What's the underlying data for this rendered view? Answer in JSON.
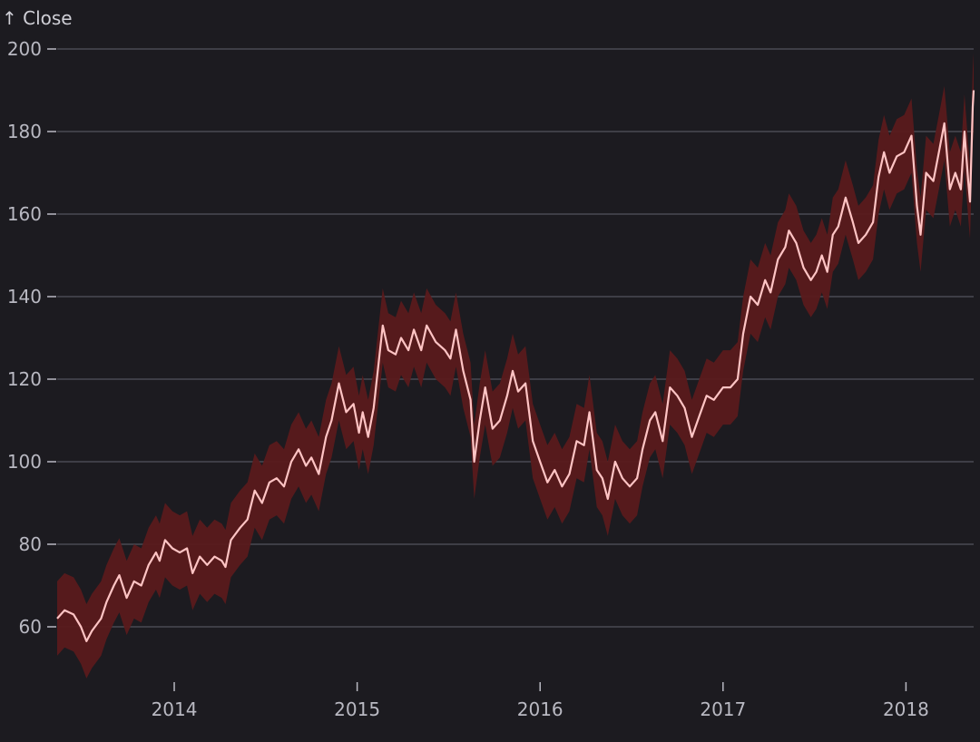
{
  "chart_data": {
    "type": "line",
    "ylabel": "↑ Close",
    "xlabel": "",
    "ylim": [
      47,
      200
    ],
    "yticks": [
      60,
      80,
      100,
      120,
      140,
      160,
      180,
      200
    ],
    "xlim": [
      2013.36,
      2018.37
    ],
    "xticks": [
      {
        "value": 2014,
        "label": "2014"
      },
      {
        "value": 2015,
        "label": "2015"
      },
      {
        "value": 2016,
        "label": "2016"
      },
      {
        "value": 2017,
        "label": "2017"
      },
      {
        "value": 2018,
        "label": "2018"
      }
    ],
    "grid": true,
    "band_half_width": 9,
    "colors": {
      "line": "#ffc4c4",
      "band": "#5a1a1c",
      "background": "#1c1b20",
      "grid": "#4a4a52"
    },
    "series": [
      {
        "points": [
          [
            2013.36,
            62
          ],
          [
            2013.4,
            64
          ],
          [
            2013.45,
            63
          ],
          [
            2013.49,
            60
          ],
          [
            2013.52,
            56.5
          ],
          [
            2013.55,
            59
          ],
          [
            2013.6,
            62
          ],
          [
            2013.63,
            66
          ],
          [
            2013.67,
            70
          ],
          [
            2013.7,
            72.5
          ],
          [
            2013.74,
            67
          ],
          [
            2013.78,
            71
          ],
          [
            2013.82,
            70
          ],
          [
            2013.86,
            75
          ],
          [
            2013.9,
            78
          ],
          [
            2013.92,
            76
          ],
          [
            2013.95,
            81
          ],
          [
            2013.99,
            79
          ],
          [
            2014.03,
            78
          ],
          [
            2014.07,
            79
          ],
          [
            2014.1,
            73
          ],
          [
            2014.14,
            77
          ],
          [
            2014.18,
            75
          ],
          [
            2014.22,
            77
          ],
          [
            2014.26,
            76
          ],
          [
            2014.28,
            74.5
          ],
          [
            2014.31,
            81
          ],
          [
            2014.36,
            84
          ],
          [
            2014.4,
            86
          ],
          [
            2014.44,
            93
          ],
          [
            2014.48,
            90
          ],
          [
            2014.52,
            95
          ],
          [
            2014.56,
            96
          ],
          [
            2014.6,
            94
          ],
          [
            2014.64,
            100
          ],
          [
            2014.68,
            103
          ],
          [
            2014.72,
            99
          ],
          [
            2014.75,
            101
          ],
          [
            2014.79,
            97
          ],
          [
            2014.83,
            106
          ],
          [
            2014.86,
            110
          ],
          [
            2014.9,
            119
          ],
          [
            2014.94,
            112
          ],
          [
            2014.98,
            114
          ],
          [
            2015.01,
            107
          ],
          [
            2015.03,
            112
          ],
          [
            2015.06,
            106
          ],
          [
            2015.09,
            113
          ],
          [
            2015.12,
            125
          ],
          [
            2015.14,
            133
          ],
          [
            2015.17,
            127
          ],
          [
            2015.21,
            126
          ],
          [
            2015.24,
            130
          ],
          [
            2015.28,
            127
          ],
          [
            2015.31,
            132
          ],
          [
            2015.35,
            127
          ],
          [
            2015.38,
            133
          ],
          [
            2015.43,
            129
          ],
          [
            2015.48,
            127
          ],
          [
            2015.51,
            125
          ],
          [
            2015.54,
            132
          ],
          [
            2015.58,
            122
          ],
          [
            2015.62,
            115
          ],
          [
            2015.64,
            100
          ],
          [
            2015.67,
            110
          ],
          [
            2015.7,
            118
          ],
          [
            2015.74,
            108
          ],
          [
            2015.78,
            110
          ],
          [
            2015.82,
            116
          ],
          [
            2015.85,
            122
          ],
          [
            2015.88,
            117
          ],
          [
            2015.92,
            119
          ],
          [
            2015.96,
            105
          ],
          [
            2016.0,
            100
          ],
          [
            2016.04,
            95
          ],
          [
            2016.08,
            98
          ],
          [
            2016.12,
            94
          ],
          [
            2016.16,
            97
          ],
          [
            2016.2,
            105
          ],
          [
            2016.24,
            104
          ],
          [
            2016.27,
            112
          ],
          [
            2016.31,
            98
          ],
          [
            2016.34,
            96
          ],
          [
            2016.37,
            91
          ],
          [
            2016.41,
            100
          ],
          [
            2016.45,
            96
          ],
          [
            2016.49,
            94
          ],
          [
            2016.53,
            96
          ],
          [
            2016.56,
            103
          ],
          [
            2016.6,
            110
          ],
          [
            2016.63,
            112
          ],
          [
            2016.67,
            105
          ],
          [
            2016.71,
            118
          ],
          [
            2016.75,
            116
          ],
          [
            2016.79,
            113
          ],
          [
            2016.83,
            106
          ],
          [
            2016.87,
            111
          ],
          [
            2016.91,
            116
          ],
          [
            2016.95,
            115
          ],
          [
            2017.0,
            118
          ],
          [
            2017.04,
            118
          ],
          [
            2017.08,
            120
          ],
          [
            2017.11,
            131
          ],
          [
            2017.15,
            140
          ],
          [
            2017.19,
            138
          ],
          [
            2017.23,
            144
          ],
          [
            2017.26,
            141
          ],
          [
            2017.3,
            149
          ],
          [
            2017.34,
            152
          ],
          [
            2017.36,
            156
          ],
          [
            2017.4,
            153
          ],
          [
            2017.44,
            147
          ],
          [
            2017.48,
            144
          ],
          [
            2017.51,
            146
          ],
          [
            2017.54,
            150
          ],
          [
            2017.57,
            146
          ],
          [
            2017.6,
            155
          ],
          [
            2017.63,
            157
          ],
          [
            2017.67,
            164
          ],
          [
            2017.71,
            158
          ],
          [
            2017.74,
            153
          ],
          [
            2017.78,
            155
          ],
          [
            2017.82,
            158
          ],
          [
            2017.85,
            169
          ],
          [
            2017.88,
            175
          ],
          [
            2017.91,
            170
          ],
          [
            2017.95,
            174
          ],
          [
            2017.99,
            175
          ],
          [
            2018.03,
            179
          ],
          [
            2018.06,
            162
          ],
          [
            2018.08,
            155
          ],
          [
            2018.11,
            170
          ],
          [
            2018.15,
            168
          ],
          [
            2018.18,
            175
          ],
          [
            2018.21,
            182
          ],
          [
            2018.24,
            166
          ],
          [
            2018.27,
            170
          ],
          [
            2018.3,
            166
          ],
          [
            2018.32,
            180
          ],
          [
            2018.34,
            168
          ],
          [
            2018.35,
            163
          ],
          [
            2018.365,
            186
          ],
          [
            2018.37,
            190
          ]
        ]
      }
    ]
  }
}
